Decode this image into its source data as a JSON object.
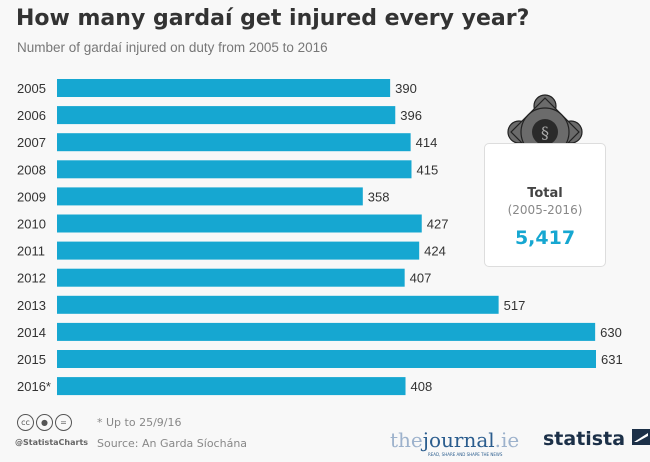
{
  "chart_data": {
    "type": "bar",
    "orientation": "horizontal",
    "title": "How many gardaí get injured every year?",
    "subtitle": "Number of gardaí injured on duty from 2005 to 2016",
    "categories": [
      "2005",
      "2006",
      "2007",
      "2008",
      "2009",
      "2010",
      "2011",
      "2012",
      "2013",
      "2014",
      "2015",
      "2016*"
    ],
    "values": [
      390,
      396,
      414,
      415,
      358,
      427,
      424,
      407,
      517,
      630,
      631,
      408
    ],
    "xlim": [
      0,
      640
    ],
    "grid": false,
    "bar_color": "#16a7d1",
    "data_labels": true
  },
  "total": {
    "label": "Total",
    "range": "(2005-2016)",
    "value": "5,417",
    "icon": "garda-badge-icon"
  },
  "footer": {
    "note": "* Up to 25/9/16",
    "source": "Source: An Garda Síochána",
    "handle": "@StatistaCharts",
    "license_icons": [
      "cc",
      "by",
      "nd"
    ]
  },
  "logos": {
    "journal_the": "the",
    "journal_main": "journal",
    "journal_ie": ".ie",
    "journal_tagline": "READ, SHARE AND SHAPE THE NEWS",
    "statista": "statista"
  }
}
